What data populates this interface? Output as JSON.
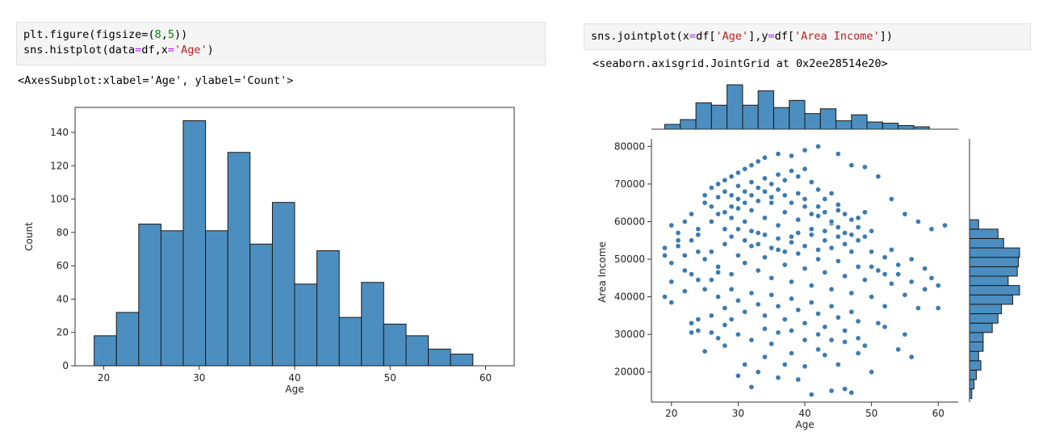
{
  "left": {
    "code": {
      "line1": {
        "a": "plt.figure(figsize=",
        "b": "(",
        "c": "8",
        "d": ",",
        "e": "5",
        "f": "))"
      },
      "line2": {
        "a": "sns.histplot(data",
        "b": "=",
        "c": "df,x",
        "d": "=",
        "e": "'Age'",
        "f": ")"
      }
    },
    "output": "<AxesSubplot:xlabel='Age', ylabel='Count'>"
  },
  "right": {
    "code": {
      "a": "sns.jointplot(x",
      "b": "=",
      "c": "df[",
      "d": "'Age'",
      "e": "],y",
      "f": "=",
      "g": "df[",
      "h": "'Area Income'",
      "i": "])"
    },
    "output": "<seaborn.axisgrid.JointGrid at 0x2ee28514e20>"
  },
  "colors": {
    "bar": "#4c8ebf",
    "edge": "#1a1a1a",
    "point": "#3b7bb1"
  },
  "chart_data": [
    {
      "type": "bar",
      "title": "",
      "xlabel": "Age",
      "ylabel": "Count",
      "xlim": [
        17,
        63
      ],
      "ylim": [
        0,
        155
      ],
      "xticks": [
        20,
        30,
        40,
        50,
        60
      ],
      "yticks": [
        0,
        20,
        40,
        60,
        80,
        100,
        120,
        140
      ],
      "bins": [
        {
          "x0": 19.0,
          "x1": 21.33,
          "count": 18
        },
        {
          "x0": 21.33,
          "x1": 23.67,
          "count": 32
        },
        {
          "x0": 23.67,
          "x1": 26.0,
          "count": 85
        },
        {
          "x0": 26.0,
          "x1": 28.33,
          "count": 81
        },
        {
          "x0": 28.33,
          "x1": 30.67,
          "count": 147
        },
        {
          "x0": 30.67,
          "x1": 33.0,
          "count": 81
        },
        {
          "x0": 33.0,
          "x1": 35.33,
          "count": 128
        },
        {
          "x0": 35.33,
          "x1": 37.67,
          "count": 73
        },
        {
          "x0": 37.67,
          "x1": 40.0,
          "count": 98
        },
        {
          "x0": 40.0,
          "x1": 42.33,
          "count": 49
        },
        {
          "x0": 42.33,
          "x1": 44.67,
          "count": 69
        },
        {
          "x0": 44.67,
          "x1": 47.0,
          "count": 29
        },
        {
          "x0": 47.0,
          "x1": 49.33,
          "count": 50
        },
        {
          "x0": 49.33,
          "x1": 51.67,
          "count": 25
        },
        {
          "x0": 51.67,
          "x1": 54.0,
          "count": 18
        },
        {
          "x0": 54.0,
          "x1": 56.33,
          "count": 10
        },
        {
          "x0": 56.33,
          "x1": 58.67,
          "count": 7
        }
      ]
    },
    {
      "type": "scatter",
      "title": "",
      "xlabel": "Age",
      "ylabel": "Area Income",
      "xlim": [
        17,
        63
      ],
      "ylim": [
        12000,
        82000
      ],
      "xticks": [
        20,
        30,
        40,
        50,
        60
      ],
      "yticks": [
        20000,
        30000,
        40000,
        50000,
        60000,
        70000,
        80000
      ],
      "marginal_x_counts": [
        4,
        8,
        22,
        20,
        37,
        20,
        32,
        18,
        24,
        13,
        17,
        7,
        12,
        6,
        5,
        3,
        2
      ],
      "marginal_y": {
        "bin_width": 2500,
        "start": 13000,
        "counts": [
          2,
          4,
          6,
          10,
          8,
          12,
          12,
          20,
          25,
          28,
          38,
          44,
          34,
          42,
          43,
          44,
          30,
          25,
          8
        ]
      },
      "points": [
        [
          19,
          53000
        ],
        [
          19,
          51000
        ],
        [
          20,
          49000
        ],
        [
          21,
          55000
        ],
        [
          22,
          60000
        ],
        [
          21,
          57000
        ],
        [
          20,
          44000
        ],
        [
          19,
          40000
        ],
        [
          20,
          38500
        ],
        [
          22,
          41500
        ],
        [
          23,
          46000
        ],
        [
          24,
          52000
        ],
        [
          24,
          58000
        ],
        [
          23,
          62000
        ],
        [
          25,
          65000
        ],
        [
          25,
          67000
        ],
        [
          26,
          69000
        ],
        [
          27,
          70000
        ],
        [
          28,
          71000
        ],
        [
          29,
          72000
        ],
        [
          30,
          73000
        ],
        [
          31,
          74000
        ],
        [
          32,
          75000
        ],
        [
          33,
          76000
        ],
        [
          34,
          77000
        ],
        [
          36,
          78000
        ],
        [
          38,
          77500
        ],
        [
          40,
          79000
        ],
        [
          42,
          80000
        ],
        [
          45,
          78000
        ],
        [
          47,
          75000
        ],
        [
          49,
          74500
        ],
        [
          51,
          72000
        ],
        [
          53,
          66000
        ],
        [
          55,
          62000
        ],
        [
          57,
          60000
        ],
        [
          59,
          58000
        ],
        [
          61,
          59000
        ],
        [
          23,
          33000
        ],
        [
          24,
          31000
        ],
        [
          25,
          25500
        ],
        [
          26,
          35000
        ],
        [
          27,
          29000
        ],
        [
          28,
          27000
        ],
        [
          29,
          34000
        ],
        [
          30,
          19000
        ],
        [
          31,
          22000
        ],
        [
          32,
          16000
        ],
        [
          33,
          20000
        ],
        [
          34,
          24000
        ],
        [
          35,
          27500
        ],
        [
          36,
          18500
        ],
        [
          37,
          22000
        ],
        [
          38,
          25000
        ],
        [
          39,
          18000
        ],
        [
          40,
          21500
        ],
        [
          41,
          14000
        ],
        [
          42,
          26000
        ],
        [
          43,
          24500
        ],
        [
          44,
          15000
        ],
        [
          45,
          22000
        ],
        [
          46,
          15500
        ],
        [
          47,
          14500
        ],
        [
          48,
          25000
        ],
        [
          49,
          27000
        ],
        [
          50,
          20000
        ],
        [
          51,
          33000
        ],
        [
          52,
          32000
        ],
        [
          54,
          26000
        ],
        [
          55,
          30000
        ],
        [
          56,
          24000
        ],
        [
          26,
          60000
        ],
        [
          27,
          62000
        ],
        [
          28,
          58000
        ],
        [
          29,
          64000
        ],
        [
          30,
          66000
        ],
        [
          31,
          60000
        ],
        [
          32,
          63000
        ],
        [
          33,
          57000
        ],
        [
          34,
          61000
        ],
        [
          35,
          65000
        ],
        [
          36,
          59000
        ],
        [
          37,
          62500
        ],
        [
          38,
          56000
        ],
        [
          39,
          60500
        ],
        [
          40,
          64000
        ],
        [
          41,
          58000
        ],
        [
          42,
          61500
        ],
        [
          43,
          55000
        ],
        [
          44,
          59500
        ],
        [
          45,
          63000
        ],
        [
          25,
          50000
        ],
        [
          26,
          52000
        ],
        [
          27,
          48000
        ],
        [
          28,
          54000
        ],
        [
          29,
          46000
        ],
        [
          30,
          51000
        ],
        [
          31,
          49000
        ],
        [
          32,
          53500
        ],
        [
          33,
          47000
        ],
        [
          34,
          50500
        ],
        [
          35,
          45000
        ],
        [
          36,
          52500
        ],
        [
          37,
          48500
        ],
        [
          38,
          44000
        ],
        [
          39,
          51500
        ],
        [
          40,
          47500
        ],
        [
          41,
          43000
        ],
        [
          42,
          50000
        ],
        [
          43,
          46500
        ],
        [
          44,
          42000
        ],
        [
          45,
          49500
        ],
        [
          46,
          45500
        ],
        [
          47,
          41000
        ],
        [
          48,
          48000
        ],
        [
          49,
          44500
        ],
        [
          50,
          52000
        ],
        [
          51,
          47000
        ],
        [
          52,
          50500
        ],
        [
          53,
          43500
        ],
        [
          54,
          46000
        ],
        [
          55,
          40500
        ],
        [
          56,
          44000
        ],
        [
          57,
          37000
        ],
        [
          58,
          42000
        ],
        [
          27,
          40000
        ],
        [
          28,
          37000
        ],
        [
          29,
          42000
        ],
        [
          30,
          39000
        ],
        [
          31,
          36000
        ],
        [
          32,
          41000
        ],
        [
          33,
          38000
        ],
        [
          34,
          35000
        ],
        [
          35,
          40500
        ],
        [
          36,
          37500
        ],
        [
          37,
          34000
        ],
        [
          38,
          39500
        ],
        [
          39,
          36500
        ],
        [
          40,
          33000
        ],
        [
          41,
          38500
        ],
        [
          42,
          35500
        ],
        [
          43,
          32000
        ],
        [
          44,
          37500
        ],
        [
          45,
          34500
        ],
        [
          46,
          31000
        ],
        [
          47,
          36000
        ],
        [
          48,
          33500
        ],
        [
          26,
          64000
        ],
        [
          27,
          66500
        ],
        [
          28,
          68000
        ],
        [
          29,
          67000
        ],
        [
          30,
          69500
        ],
        [
          31,
          68000
        ],
        [
          32,
          70500
        ],
        [
          33,
          69000
        ],
        [
          34,
          71500
        ],
        [
          35,
          70000
        ],
        [
          36,
          72500
        ],
        [
          37,
          71000
        ],
        [
          38,
          73500
        ],
        [
          39,
          72000
        ],
        [
          40,
          74000
        ],
        [
          41,
          70500
        ],
        [
          42,
          68500
        ],
        [
          43,
          66000
        ],
        [
          44,
          67500
        ],
        [
          45,
          64500
        ],
        [
          46,
          62000
        ],
        [
          47,
          60500
        ],
        [
          48,
          58500
        ],
        [
          49,
          56000
        ],
        [
          50,
          57500
        ],
        [
          29,
          56000
        ],
        [
          30,
          58000
        ],
        [
          31,
          55000
        ],
        [
          32,
          57500
        ],
        [
          33,
          54000
        ],
        [
          34,
          56500
        ],
        [
          35,
          53000
        ],
        [
          36,
          55500
        ],
        [
          37,
          52000
        ],
        [
          38,
          54500
        ],
        [
          39,
          57000
        ],
        [
          40,
          53500
        ],
        [
          41,
          56500
        ],
        [
          42,
          52500
        ],
        [
          43,
          57500
        ],
        [
          44,
          53000
        ],
        [
          45,
          56000
        ],
        [
          46,
          54000
        ],
        [
          47,
          52000
        ],
        [
          48,
          55000
        ],
        [
          23,
          55000
        ],
        [
          24,
          56500
        ],
        [
          22,
          51000
        ],
        [
          21,
          53500
        ],
        [
          20,
          59000
        ],
        [
          22,
          47000
        ],
        [
          24,
          44500
        ],
        [
          25,
          42000
        ],
        [
          26,
          44500
        ],
        [
          27,
          46500
        ],
        [
          28,
          62500
        ],
        [
          29,
          61000
        ],
        [
          30,
          63500
        ],
        [
          31,
          65000
        ],
        [
          32,
          67000
        ],
        [
          33,
          65500
        ],
        [
          34,
          68000
        ],
        [
          35,
          66500
        ],
        [
          36,
          68500
        ],
        [
          37,
          67000
        ],
        [
          38,
          65000
        ],
        [
          39,
          67500
        ],
        [
          40,
          66000
        ],
        [
          41,
          62000
        ],
        [
          42,
          64000
        ],
        [
          43,
          62500
        ],
        [
          44,
          60000
        ],
        [
          45,
          58500
        ],
        [
          46,
          57000
        ],
        [
          47,
          56500
        ],
        [
          48,
          61000
        ],
        [
          49,
          62500
        ],
        [
          50,
          48000
        ],
        [
          52,
          46000
        ],
        [
          53,
          52500
        ],
        [
          54,
          48500
        ],
        [
          56,
          50000
        ],
        [
          58,
          47500
        ],
        [
          60,
          37000
        ],
        [
          60,
          43000
        ],
        [
          59,
          45000
        ],
        [
          52,
          37500
        ],
        [
          50,
          40000
        ],
        [
          48,
          29000
        ],
        [
          46,
          28000
        ],
        [
          44,
          28500
        ],
        [
          42,
          30000
        ],
        [
          40,
          28500
        ],
        [
          38,
          31000
        ],
        [
          36,
          30500
        ],
        [
          34,
          31500
        ],
        [
          32,
          28500
        ],
        [
          30,
          30000
        ],
        [
          28,
          32500
        ],
        [
          26,
          30500
        ],
        [
          24,
          34000
        ],
        [
          23,
          30500
        ]
      ]
    }
  ]
}
